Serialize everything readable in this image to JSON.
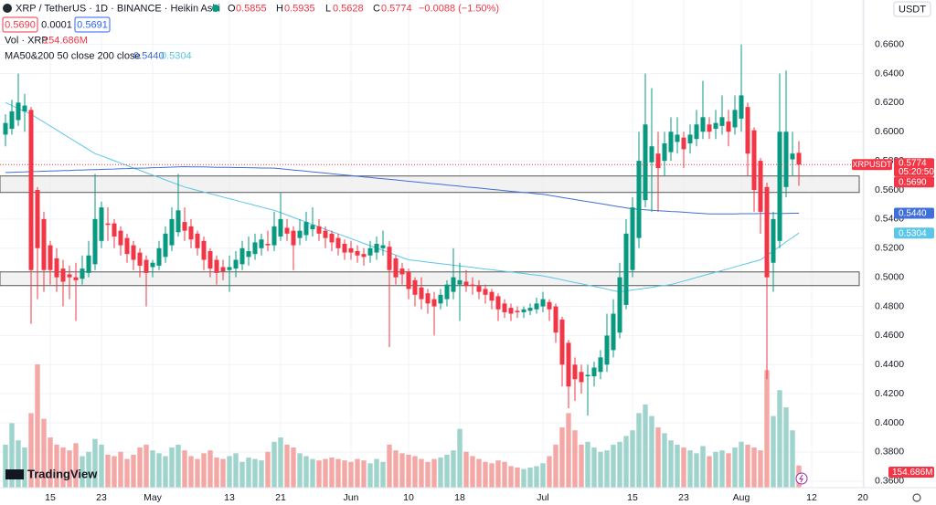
{
  "header": {
    "symbol": "XRP / TetherUS · 1D · BINANCE · Heikin Ashi",
    "o": "O",
    "h": "H",
    "l": "L",
    "c": "C",
    "change": "−0.0088 (−1.50%)",
    "bid": {
      "value": 0.569,
      "label": "0.5690"
    },
    "spread": 0.0001,
    "ask": 0.5691,
    "vol_title": "Vol · XRP",
    "ma_title": "MA50&200 50 close 200 close",
    "currency": "USDT",
    "symbol_tag": "XRPUSDT",
    "countdown": "05:20:50",
    "brand": "TradingView"
  },
  "chart_data": {
    "type": "candlestick",
    "categories": [
      "Apr 8",
      "Apr 9",
      "Apr 10",
      "Apr 11",
      "Apr 12",
      "Apr 13",
      "Apr 14",
      "Apr 15",
      "Apr 16",
      "Apr 17",
      "Apr 18",
      "Apr 19",
      "Apr 20",
      "Apr 21",
      "Apr 22",
      "Apr 23",
      "Apr 24",
      "Apr 25",
      "Apr 26",
      "Apr 27",
      "Apr 28",
      "Apr 29",
      "Apr 30",
      "May 1",
      "May 2",
      "May 3",
      "May 4",
      "May 5",
      "May 6",
      "May 7",
      "May 8",
      "May 9",
      "May 10",
      "May 11",
      "May 12",
      "May 13",
      "May 14",
      "May 15",
      "May 16",
      "May 17",
      "May 18",
      "May 19",
      "May 20",
      "May 21",
      "May 22",
      "May 23",
      "May 24",
      "May 25",
      "May 26",
      "May 27",
      "May 28",
      "May 29",
      "May 30",
      "May 31",
      "Jun 1",
      "Jun 2",
      "Jun 3",
      "Jun 4",
      "Jun 5",
      "Jun 6",
      "Jun 7",
      "Jun 8",
      "Jun 9",
      "Jun 10",
      "Jun 11",
      "Jun 12",
      "Jun 13",
      "Jun 14",
      "Jun 15",
      "Jun 16",
      "Jun 17",
      "Jun 18",
      "Jun 19",
      "Jun 20",
      "Jun 21",
      "Jun 22",
      "Jun 23",
      "Jun 24",
      "Jun 25",
      "Jun 26",
      "Jun 27",
      "Jun 28",
      "Jun 29",
      "Jun 30",
      "Jul 1",
      "Jul 2",
      "Jul 3",
      "Jul 4",
      "Jul 5",
      "Jul 6",
      "Jul 7",
      "Jul 8",
      "Jul 9",
      "Jul 10",
      "Jul 11",
      "Jul 12",
      "Jul 13",
      "Jul 14",
      "Jul 15",
      "Jul 16",
      "Jul 17",
      "Jul 18",
      "Jul 19",
      "Jul 20",
      "Jul 21",
      "Jul 22",
      "Jul 23",
      "Jul 24",
      "Jul 25",
      "Jul 26",
      "Jul 27",
      "Jul 28",
      "Jul 29",
      "Jul 30",
      "Jul 31",
      "Aug 1",
      "Aug 2",
      "Aug 3",
      "Aug 4",
      "Aug 5",
      "Aug 6",
      "Aug 7",
      "Aug 8",
      "Aug 9",
      "Aug 10",
      "Aug 11",
      "Aug 12",
      "Aug 13",
      "Aug 14",
      "Aug 15",
      "Aug 16",
      "Aug 17",
      "Aug 18",
      "Aug 19",
      "Aug 20"
    ],
    "open": [
      0.598,
      0.602,
      0.608,
      0.614,
      0.615,
      0.56,
      0.54,
      0.522,
      0.513,
      0.506,
      0.502,
      0.5,
      0.499,
      0.503,
      0.509,
      0.525,
      0.537,
      0.537,
      0.532,
      0.527,
      0.522,
      0.517,
      0.512,
      0.507,
      0.508,
      0.514,
      0.522,
      0.531,
      0.538,
      0.535,
      0.53,
      0.525,
      0.518,
      0.512,
      0.507,
      0.505,
      0.506,
      0.509,
      0.514,
      0.516,
      0.52,
      0.523,
      0.522,
      0.528,
      0.534,
      0.532,
      0.527,
      0.529,
      0.533,
      0.535,
      0.532,
      0.53,
      0.527,
      0.523,
      0.52,
      0.518,
      0.516,
      0.515,
      0.517,
      0.52,
      0.521,
      0.513,
      0.506,
      0.504,
      0.498,
      0.493,
      0.489,
      0.485,
      0.482,
      0.485,
      0.49,
      0.495,
      0.497,
      0.495,
      0.494,
      0.492,
      0.49,
      0.487,
      0.482,
      0.479,
      0.477,
      0.476,
      0.477,
      0.478,
      0.48,
      0.483,
      0.48,
      0.471,
      0.455,
      0.44,
      0.435,
      0.432,
      0.432,
      0.435,
      0.44,
      0.45,
      0.462,
      0.481,
      0.505,
      0.527,
      0.553,
      0.579,
      0.585,
      0.58,
      0.586,
      0.593,
      0.596,
      0.592,
      0.595,
      0.6,
      0.605,
      0.602,
      0.604,
      0.607,
      0.603,
      0.609,
      0.617,
      0.601,
      0.58,
      0.562,
      0.51,
      0.525,
      0.562,
      0.581,
      0.5855,
      null,
      null,
      null,
      null,
      null,
      null,
      null,
      null,
      null,
      null
    ],
    "high": [
      0.612,
      0.622,
      0.64,
      0.626,
      0.617,
      0.562,
      0.545,
      0.525,
      0.52,
      0.512,
      0.508,
      0.51,
      0.515,
      0.525,
      0.571,
      0.552,
      0.548,
      0.54,
      0.535,
      0.53,
      0.525,
      0.52,
      0.515,
      0.512,
      0.525,
      0.535,
      0.548,
      0.571,
      0.548,
      0.54,
      0.532,
      0.528,
      0.52,
      0.515,
      0.512,
      0.515,
      0.518,
      0.525,
      0.528,
      0.53,
      0.53,
      0.532,
      0.545,
      0.558,
      0.54,
      0.535,
      0.54,
      0.545,
      0.548,
      0.54,
      0.535,
      0.532,
      0.53,
      0.526,
      0.525,
      0.522,
      0.52,
      0.525,
      0.528,
      0.532,
      0.525,
      0.515,
      0.51,
      0.506,
      0.5,
      0.5,
      0.492,
      0.49,
      0.492,
      0.498,
      0.52,
      0.51,
      0.505,
      0.5,
      0.498,
      0.495,
      0.492,
      0.489,
      0.485,
      0.482,
      0.48,
      0.48,
      0.482,
      0.486,
      0.49,
      0.485,
      0.482,
      0.473,
      0.457,
      0.445,
      0.44,
      0.44,
      0.442,
      0.45,
      0.475,
      0.485,
      0.51,
      0.54,
      0.555,
      0.6,
      0.64,
      0.63,
      0.6,
      0.6,
      0.61,
      0.61,
      0.6,
      0.605,
      0.615,
      0.635,
      0.61,
      0.615,
      0.625,
      0.615,
      0.625,
      0.66,
      0.62,
      0.603,
      0.582,
      0.565,
      0.545,
      0.64,
      0.642,
      0.6,
      0.5935,
      null,
      null,
      null,
      null,
      null,
      null,
      null,
      null,
      null,
      null
    ],
    "low": [
      0.59,
      0.598,
      0.604,
      0.6,
      0.468,
      0.485,
      0.49,
      0.495,
      0.49,
      0.48,
      0.485,
      0.47,
      0.495,
      0.5,
      0.505,
      0.52,
      0.525,
      0.52,
      0.515,
      0.51,
      0.505,
      0.5,
      0.48,
      0.5,
      0.505,
      0.51,
      0.518,
      0.528,
      0.525,
      0.52,
      0.515,
      0.505,
      0.5,
      0.495,
      0.498,
      0.49,
      0.5,
      0.505,
      0.508,
      0.512,
      0.515,
      0.518,
      0.518,
      0.525,
      0.525,
      0.505,
      0.522,
      0.525,
      0.528,
      0.525,
      0.52,
      0.518,
      0.515,
      0.512,
      0.512,
      0.51,
      0.508,
      0.51,
      0.512,
      0.515,
      0.452,
      0.495,
      0.495,
      0.485,
      0.48,
      0.478,
      0.475,
      0.46,
      0.478,
      0.48,
      0.485,
      0.47,
      0.49,
      0.488,
      0.485,
      0.482,
      0.478,
      0.47,
      0.472,
      0.47,
      0.472,
      0.472,
      0.474,
      0.475,
      0.476,
      0.47,
      0.455,
      0.425,
      0.41,
      0.415,
      0.42,
      0.405,
      0.425,
      0.43,
      0.435,
      0.445,
      0.458,
      0.478,
      0.5,
      0.52,
      0.548,
      0.545,
      0.545,
      0.57,
      0.58,
      0.585,
      0.575,
      0.585,
      0.59,
      0.595,
      0.595,
      0.595,
      0.598,
      0.59,
      0.598,
      0.6,
      0.57,
      0.545,
      0.53,
      0.43,
      0.49,
      0.52,
      0.555,
      0.57,
      0.5628,
      null,
      null,
      null,
      null,
      null,
      null,
      null,
      null,
      null,
      null
    ],
    "close": [
      0.606,
      0.614,
      0.62,
      0.618,
      0.505,
      0.52,
      0.505,
      0.505,
      0.5,
      0.497,
      0.5,
      0.498,
      0.506,
      0.515,
      0.54,
      0.548,
      0.536,
      0.528,
      0.522,
      0.516,
      0.512,
      0.508,
      0.503,
      0.51,
      0.52,
      0.53,
      0.54,
      0.546,
      0.532,
      0.526,
      0.52,
      0.512,
      0.506,
      0.503,
      0.504,
      0.507,
      0.512,
      0.52,
      0.518,
      0.524,
      0.526,
      0.522,
      0.535,
      0.54,
      0.53,
      0.522,
      0.532,
      0.538,
      0.536,
      0.53,
      0.527,
      0.524,
      0.52,
      0.517,
      0.517,
      0.515,
      0.514,
      0.52,
      0.523,
      0.522,
      0.505,
      0.5,
      0.502,
      0.492,
      0.488,
      0.485,
      0.482,
      0.48,
      0.488,
      0.495,
      0.5,
      0.498,
      0.494,
      0.494,
      0.49,
      0.488,
      0.484,
      0.478,
      0.476,
      0.475,
      0.476,
      0.478,
      0.479,
      0.482,
      0.485,
      0.478,
      0.462,
      0.44,
      0.425,
      0.43,
      0.428,
      0.433,
      0.438,
      0.445,
      0.46,
      0.475,
      0.5,
      0.53,
      0.548,
      0.58,
      0.605,
      0.59,
      0.575,
      0.592,
      0.6,
      0.598,
      0.588,
      0.598,
      0.605,
      0.61,
      0.6,
      0.606,
      0.61,
      0.6,
      0.615,
      0.625,
      0.585,
      0.56,
      0.545,
      0.5,
      0.54,
      0.6,
      0.6,
      0.585,
      0.5774,
      null,
      null,
      null,
      null,
      null,
      null,
      null,
      null,
      null,
      null
    ],
    "volume": [
      300,
      450,
      330,
      280,
      520,
      860,
      480,
      350,
      300,
      280,
      260,
      310,
      220,
      250,
      340,
      300,
      230,
      220,
      250,
      200,
      230,
      280,
      300,
      260,
      240,
      220,
      280,
      300,
      260,
      220,
      200,
      240,
      260,
      210,
      200,
      220,
      240,
      180,
      210,
      200,
      190,
      250,
      320,
      350,
      300,
      280,
      240,
      220,
      200,
      190,
      200,
      210,
      200,
      190,
      180,
      200,
      190,
      170,
      200,
      180,
      300,
      260,
      240,
      230,
      220,
      200,
      180,
      200,
      210,
      230,
      260,
      410,
      250,
      220,
      200,
      180,
      170,
      190,
      180,
      150,
      140,
      130,
      140,
      150,
      170,
      220,
      300,
      420,
      520,
      400,
      300,
      320,
      280,
      250,
      260,
      300,
      320,
      360,
      400,
      520,
      580,
      500,
      420,
      380,
      330,
      300,
      280,
      260,
      240,
      290,
      220,
      250,
      260,
      240,
      280,
      320,
      300,
      280,
      260,
      820,
      500,
      680,
      560,
      400,
      154.686,
      null,
      null,
      null,
      null,
      null,
      null,
      null,
      null,
      null,
      null
    ],
    "volume_last_label": "154.686M",
    "up_color": "#089981",
    "down_color": "#f23645",
    "volume_up_color": "#9fd4cc",
    "volume_down_color": "#f4a8a6",
    "series": [
      {
        "color": "#5cc6e8",
        "last_label": "0.5304",
        "values": [
          0.62,
          0.618,
          0.616,
          0.614,
          0.612,
          0.6093,
          0.6066,
          0.6039,
          0.6012,
          0.5985,
          0.5958,
          0.5931,
          0.5904,
          0.5877,
          0.585,
          0.5834,
          0.5817,
          0.5801,
          0.5784,
          0.5768,
          0.5751,
          0.5735,
          0.5719,
          0.5702,
          0.5686,
          0.5669,
          0.5653,
          0.5636,
          0.562,
          0.5609,
          0.5597,
          0.5586,
          0.5574,
          0.5563,
          0.5551,
          0.554,
          0.5529,
          0.5517,
          0.5506,
          0.5494,
          0.5483,
          0.5471,
          0.546,
          0.5444,
          0.5428,
          0.5411,
          0.5395,
          0.5379,
          0.5363,
          0.5347,
          0.533,
          0.5314,
          0.5298,
          0.5282,
          0.5266,
          0.525,
          0.5233,
          0.5217,
          0.5201,
          0.5185,
          0.5169,
          0.5152,
          0.5136,
          0.512,
          0.5115,
          0.511,
          0.5104,
          0.5099,
          0.5094,
          0.5089,
          0.5083,
          0.5078,
          0.5073,
          0.5068,
          0.5062,
          0.5057,
          0.5052,
          0.5047,
          0.5041,
          0.5036,
          0.5031,
          0.5026,
          0.502,
          0.5015,
          0.501,
          0.5001,
          0.4992,
          0.4983,
          0.4973,
          0.4964,
          0.4955,
          0.4946,
          0.4937,
          0.4928,
          0.4918,
          0.4909,
          0.49,
          0.4906,
          0.4913,
          0.4919,
          0.4925,
          0.4931,
          0.4938,
          0.4944,
          0.495,
          0.4962,
          0.4974,
          0.4986,
          0.4999,
          0.5011,
          0.5023,
          0.5035,
          0.5047,
          0.5059,
          0.5071,
          0.5084,
          0.5096,
          0.5108,
          0.512,
          0.5151,
          0.5181,
          0.5212,
          0.5243,
          0.5273,
          0.5304,
          null,
          null,
          null,
          null,
          null,
          null,
          null,
          null,
          null,
          null
        ]
      },
      {
        "color": "#3f6fd8",
        "last_label": "0.5440",
        "values": [
          0.572,
          0.5721,
          0.5723,
          0.5724,
          0.5726,
          0.5727,
          0.5729,
          0.573,
          0.5731,
          0.5733,
          0.5734,
          0.5736,
          0.5737,
          0.5739,
          0.574,
          0.5741,
          0.5743,
          0.5744,
          0.5746,
          0.5747,
          0.5749,
          0.575,
          0.5751,
          0.5753,
          0.5754,
          0.5756,
          0.5757,
          0.5759,
          0.576,
          0.5759,
          0.5759,
          0.5758,
          0.5757,
          0.5756,
          0.5756,
          0.5755,
          0.5754,
          0.5754,
          0.5753,
          0.5752,
          0.5751,
          0.5751,
          0.575,
          0.5746,
          0.5741,
          0.5737,
          0.5733,
          0.5729,
          0.5724,
          0.572,
          0.5716,
          0.5711,
          0.5707,
          0.5703,
          0.5699,
          0.5694,
          0.569,
          0.5686,
          0.5681,
          0.5677,
          0.5673,
          0.5669,
          0.5664,
          0.566,
          0.5656,
          0.5651,
          0.5647,
          0.5643,
          0.5639,
          0.5634,
          0.563,
          0.5626,
          0.5621,
          0.5617,
          0.5613,
          0.5609,
          0.5604,
          0.56,
          0.5596,
          0.5591,
          0.5587,
          0.5583,
          0.5579,
          0.5574,
          0.557,
          0.5563,
          0.5556,
          0.5549,
          0.5541,
          0.5534,
          0.5527,
          0.552,
          0.5513,
          0.5506,
          0.5499,
          0.5491,
          0.5484,
          0.5477,
          0.547,
          0.5467,
          0.5464,
          0.5461,
          0.5458,
          0.5455,
          0.5452,
          0.545,
          0.5447,
          0.5444,
          0.5441,
          0.5438,
          0.5435,
          0.5435,
          0.5436,
          0.5436,
          0.5436,
          0.5437,
          0.5437,
          0.5437,
          0.5438,
          0.5438,
          0.5438,
          0.5439,
          0.5439,
          0.544,
          0.544,
          null,
          null,
          null,
          null,
          null,
          null,
          null,
          null,
          null,
          null
        ]
      }
    ],
    "zones": [
      {
        "top": 0.5696,
        "bottom": 0.5583
      },
      {
        "top": 0.5037,
        "bottom": 0.4943
      }
    ],
    "ylim": [
      0.3555,
      0.6905
    ],
    "yticks": [
      {
        "value": 0.36,
        "label": "0.3600"
      },
      {
        "value": 0.38,
        "label": "0.3800"
      },
      {
        "value": 0.4,
        "label": "0.4000"
      },
      {
        "value": 0.42,
        "label": "0.4200"
      },
      {
        "value": 0.44,
        "label": "0.4400"
      },
      {
        "value": 0.46,
        "label": "0.4600"
      },
      {
        "value": 0.48,
        "label": "0.4800"
      },
      {
        "value": 0.5,
        "label": "0.5000"
      },
      {
        "value": 0.52,
        "label": "0.5200"
      },
      {
        "value": 0.54,
        "label": "0.5400"
      },
      {
        "value": 0.56,
        "label": "0.5600"
      },
      {
        "value": 0.58,
        "label": "0.5800"
      },
      {
        "value": 0.6,
        "label": "0.6000"
      },
      {
        "value": 0.62,
        "label": "0.6200"
      },
      {
        "value": 0.64,
        "label": "0.6400"
      },
      {
        "value": 0.66,
        "label": "0.6600"
      }
    ],
    "xticks": [
      {
        "value": "Apr 15",
        "label": "15"
      },
      {
        "value": "Apr 23",
        "label": "23"
      },
      {
        "value": "May 1",
        "label": "May"
      },
      {
        "value": "May 13",
        "label": "13"
      },
      {
        "value": "May 21",
        "label": "21"
      },
      {
        "value": "Jun 1",
        "label": "Jun"
      },
      {
        "value": "Jun 10",
        "label": "10"
      },
      {
        "value": "Jun 18",
        "label": "18"
      },
      {
        "value": "Jul 1",
        "label": "Jul"
      },
      {
        "value": "Jul 15",
        "label": "15"
      },
      {
        "value": "Jul 23",
        "label": "23"
      },
      {
        "value": "Aug 1",
        "label": "Aug"
      },
      {
        "value": "Aug 12",
        "label": "12"
      },
      {
        "value": "Aug 20",
        "label": "20"
      }
    ],
    "grid": true
  }
}
